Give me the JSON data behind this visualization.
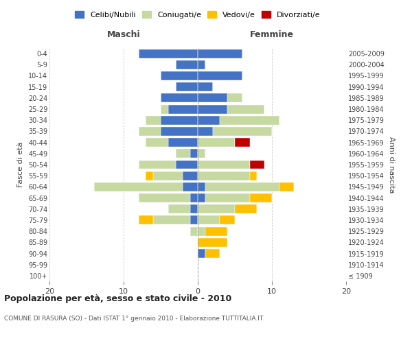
{
  "age_groups": [
    "100+",
    "95-99",
    "90-94",
    "85-89",
    "80-84",
    "75-79",
    "70-74",
    "65-69",
    "60-64",
    "55-59",
    "50-54",
    "45-49",
    "40-44",
    "35-39",
    "30-34",
    "25-29",
    "20-24",
    "15-19",
    "10-14",
    "5-9",
    "0-4"
  ],
  "birth_years": [
    "≤ 1909",
    "1910-1914",
    "1915-1919",
    "1920-1924",
    "1925-1929",
    "1930-1934",
    "1935-1939",
    "1940-1944",
    "1945-1949",
    "1950-1954",
    "1955-1959",
    "1960-1964",
    "1965-1969",
    "1970-1974",
    "1975-1979",
    "1980-1984",
    "1985-1989",
    "1990-1994",
    "1995-1999",
    "2000-2004",
    "2005-2009"
  ],
  "maschi": {
    "celibi": [
      0,
      0,
      0,
      0,
      0,
      1,
      1,
      1,
      2,
      2,
      3,
      1,
      4,
      5,
      5,
      4,
      5,
      3,
      5,
      3,
      8
    ],
    "coniugati": [
      0,
      0,
      0,
      0,
      1,
      5,
      3,
      7,
      12,
      4,
      5,
      2,
      3,
      3,
      2,
      1,
      0,
      0,
      0,
      0,
      0
    ],
    "vedovi": [
      0,
      0,
      0,
      0,
      0,
      2,
      0,
      0,
      0,
      1,
      0,
      0,
      0,
      0,
      0,
      0,
      0,
      0,
      0,
      0,
      0
    ],
    "divorziati": [
      0,
      0,
      0,
      0,
      0,
      0,
      0,
      0,
      0,
      0,
      0,
      0,
      0,
      0,
      0,
      0,
      0,
      0,
      0,
      0,
      0
    ]
  },
  "femmine": {
    "nubili": [
      0,
      0,
      1,
      0,
      0,
      0,
      0,
      1,
      1,
      0,
      0,
      0,
      0,
      2,
      3,
      4,
      4,
      2,
      6,
      1,
      6
    ],
    "coniugate": [
      0,
      0,
      0,
      0,
      1,
      3,
      5,
      6,
      10,
      7,
      7,
      1,
      5,
      8,
      8,
      5,
      2,
      0,
      0,
      0,
      0
    ],
    "vedove": [
      0,
      0,
      2,
      4,
      3,
      2,
      3,
      3,
      2,
      1,
      0,
      0,
      0,
      0,
      0,
      0,
      0,
      0,
      0,
      0,
      0
    ],
    "divorziate": [
      0,
      0,
      0,
      0,
      0,
      0,
      0,
      0,
      0,
      0,
      2,
      0,
      2,
      0,
      0,
      0,
      0,
      0,
      0,
      0,
      0
    ]
  },
  "colors": {
    "celibi": "#4472c4",
    "coniugati": "#c5d9a0",
    "vedovi": "#ffc000",
    "divorziati": "#c00000"
  },
  "xlim": [
    -20,
    20
  ],
  "title": "Popolazione per età, sesso e stato civile - 2010",
  "subtitle": "COMUNE DI RASURA (SO) - Dati ISTAT 1° gennaio 2010 - Elaborazione TUTTITALIA.IT",
  "ylabel_left": "Fasce di età",
  "ylabel_right": "Anni di nascita",
  "xlabel_maschi": "Maschi",
  "xlabel_femmine": "Femmine",
  "legend_labels": [
    "Celibi/Nubili",
    "Coniugati/e",
    "Vedovi/e",
    "Divorziati/e"
  ],
  "legend_colors": [
    "#4472c4",
    "#c5d9a0",
    "#ffc000",
    "#c00000"
  ]
}
